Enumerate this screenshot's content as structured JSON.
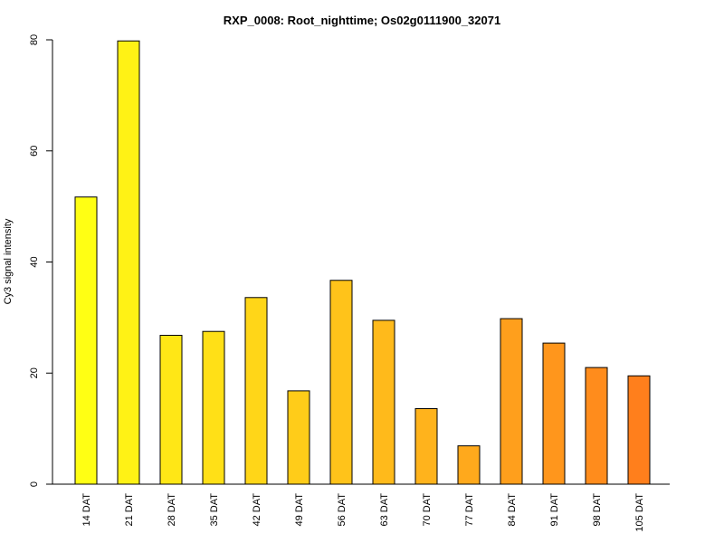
{
  "chart_data": {
    "type": "bar",
    "title": "RXP_0008: Root_nighttime; Os02g0111900_32071",
    "xlabel": "",
    "ylabel": "Cy3 signal intensity",
    "ylim": [
      0,
      80
    ],
    "yticks": [
      0,
      20,
      40,
      60,
      80
    ],
    "grid": false,
    "categories": [
      "14 DAT",
      "21 DAT",
      "28 DAT",
      "35 DAT",
      "42 DAT",
      "49 DAT",
      "56 DAT",
      "63 DAT",
      "70 DAT",
      "77 DAT",
      "84 DAT",
      "91 DAT",
      "98 DAT",
      "105 DAT"
    ],
    "values": [
      51.7,
      79.8,
      26.8,
      27.5,
      33.6,
      16.8,
      36.7,
      29.5,
      13.6,
      6.9,
      29.8,
      25.4,
      21.0,
      19.5
    ],
    "colors": [
      "#FFFF14",
      "#FFF215",
      "#FFE716",
      "#FFE017",
      "#FFD618",
      "#FFCC19",
      "#FFC31A",
      "#FFBA1B",
      "#FFB31C",
      "#FFA91C",
      "#FF9F1C",
      "#FF961C",
      "#FF8C1C",
      "#FF7F1C"
    ]
  }
}
